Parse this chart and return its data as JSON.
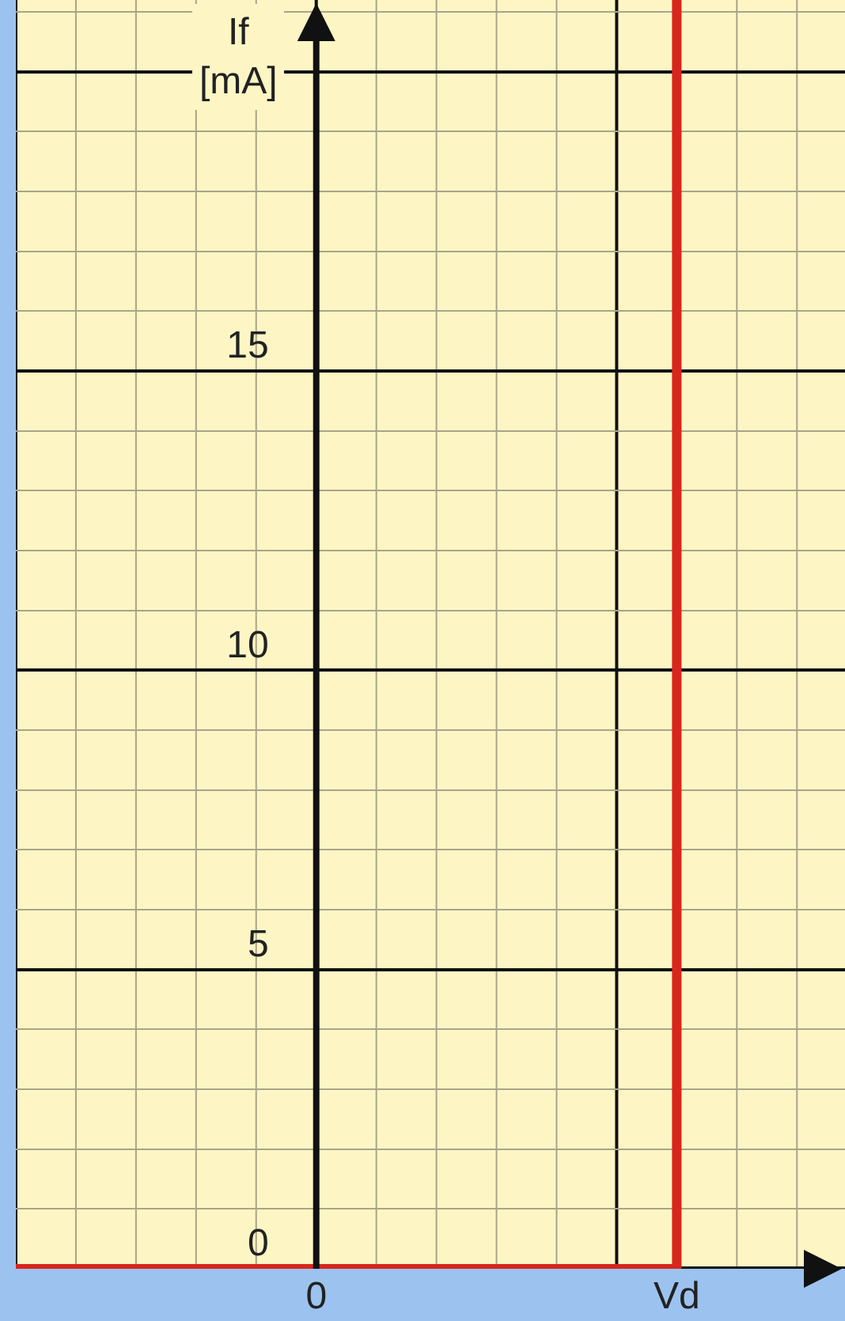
{
  "chart_data": {
    "type": "line",
    "ylabel": "If [mA]",
    "categories": [
      null,
      null,
      null,
      null,
      null,
      "0",
      null,
      null,
      null,
      null,
      null,
      "Vd",
      null,
      null
    ],
    "series": [
      {
        "color": "#d8261c",
        "values": [
          0,
          0,
          0,
          0,
          0,
          0,
          0,
          0,
          0,
          0,
          0,
          0,
          null,
          null
        ]
      }
    ],
    "ref_lines": [
      {
        "axis": "x",
        "value": "Vd",
        "color": "#d8261c"
      }
    ],
    "ylim": [
      0,
      21.2
    ],
    "yticks": [
      0,
      5,
      10,
      15,
      {
        "value": 20,
        "label": null
      }
    ],
    "grid": true,
    "marker": "none",
    "line_style": "solid"
  }
}
